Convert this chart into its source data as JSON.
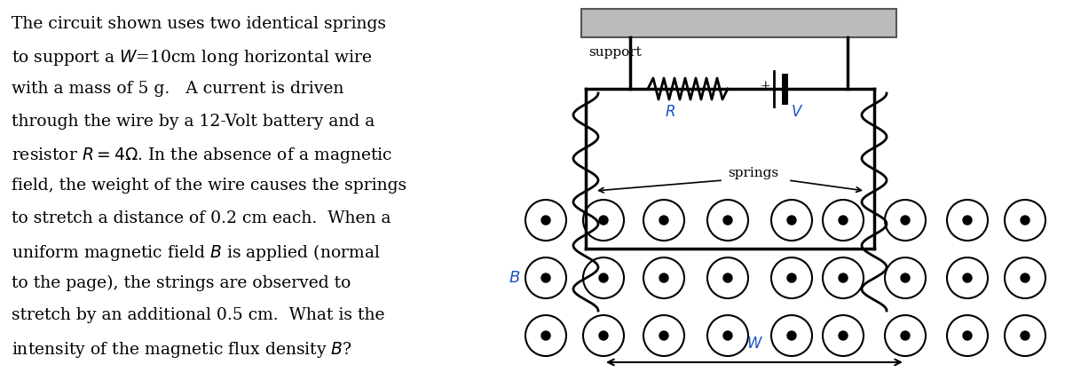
{
  "bg_color": "#ffffff",
  "text_color": "#000000",
  "orange_color": "#1a52c4",
  "fig_width": 12.0,
  "fig_height": 4.37,
  "text_lines": [
    "The circuit shown uses two identical springs",
    "to support a $W$=10cm long horizontal wire",
    "with a mass of 5 g.   A current is driven",
    "through the wire by a 12-Volt battery and a",
    "resistor $R = 4\\Omega$. In the absence of a magnetic",
    "field, the weight of the wire causes the springs",
    "to stretch a distance of 0.2 cm each.  When a",
    "uniform magnetic field $B$ is applied (normal",
    "to the page), the strings are observed to",
    "stretch by an additional 0.5 cm.  What is the",
    "intensity of the magnetic flux density $B$?"
  ],
  "support_label": "support",
  "springs_label": "springs",
  "R_label": "$R$",
  "V_label": "$V$",
  "B_label": "$B$",
  "W_label": "$W$",
  "plus_label": "+",
  "support_color": "#bbbbbb",
  "line_color": "#000000",
  "dot_rows": 3,
  "dot_cols": 7,
  "n_coils": 5
}
